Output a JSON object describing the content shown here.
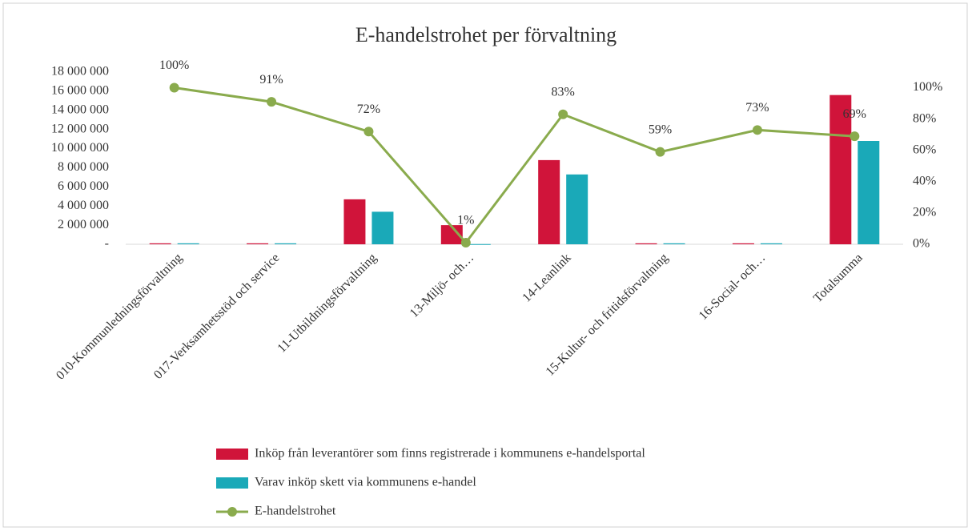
{
  "chart_data": {
    "type": "bar_line",
    "title": "E-handelstrohet  per förvaltning",
    "categories": [
      "010-Kommunledningsförvaltning",
      "017-Verksamhetsstöd och service",
      "11-Utbildningsförvaltning",
      "13-Miljö- och…",
      "14-Leanlink",
      "15-Kultur- och fritidsförvaltning",
      "16-Social- och…",
      "Totalsumma"
    ],
    "series": [
      {
        "name": "Inköp från leverantörer som finns registrerade i kommunens e-handelsportal",
        "color": "#d0143a",
        "type": "bar",
        "values": [
          100000,
          100000,
          4700000,
          2000000,
          8800000,
          100000,
          100000,
          15600000
        ]
      },
      {
        "name": "Varav inköp skett via kommunens e-handel",
        "color": "#1aa9b8",
        "type": "bar",
        "values": [
          100000,
          100000,
          3400000,
          20000,
          7300000,
          100000,
          100000,
          10800000
        ]
      },
      {
        "name": "E-handelstrohet",
        "color": "#8aab4d",
        "type": "line",
        "axis": "y2",
        "values": [
          100,
          91,
          72,
          1,
          83,
          59,
          73,
          69
        ],
        "value_labels": [
          "100%",
          "91%",
          "72%",
          "1%",
          "83%",
          "59%",
          "73%",
          "69%"
        ]
      }
    ],
    "ylim": [
      0,
      18000000
    ],
    "yticks": [
      {
        "value": 0,
        "label": "-"
      },
      {
        "value": 2000000,
        "label": "2 000 000"
      },
      {
        "value": 4000000,
        "label": "4 000 000"
      },
      {
        "value": 6000000,
        "label": "6 000 000"
      },
      {
        "value": 8000000,
        "label": "8 000 000"
      },
      {
        "value": 10000000,
        "label": "10 000 000"
      },
      {
        "value": 12000000,
        "label": "12 000 000"
      },
      {
        "value": 14000000,
        "label": "14 000 000"
      },
      {
        "value": 16000000,
        "label": "16 000 000"
      },
      {
        "value": 18000000,
        "label": "18 000 000"
      }
    ],
    "y2lim": [
      0,
      110
    ],
    "y2ticks": [
      {
        "value": 0,
        "label": "0%"
      },
      {
        "value": 20,
        "label": "20%"
      },
      {
        "value": 40,
        "label": "40%"
      },
      {
        "value": 60,
        "label": "60%"
      },
      {
        "value": 80,
        "label": "80%"
      },
      {
        "value": 100,
        "label": "100%"
      }
    ],
    "legend": "bottom"
  }
}
